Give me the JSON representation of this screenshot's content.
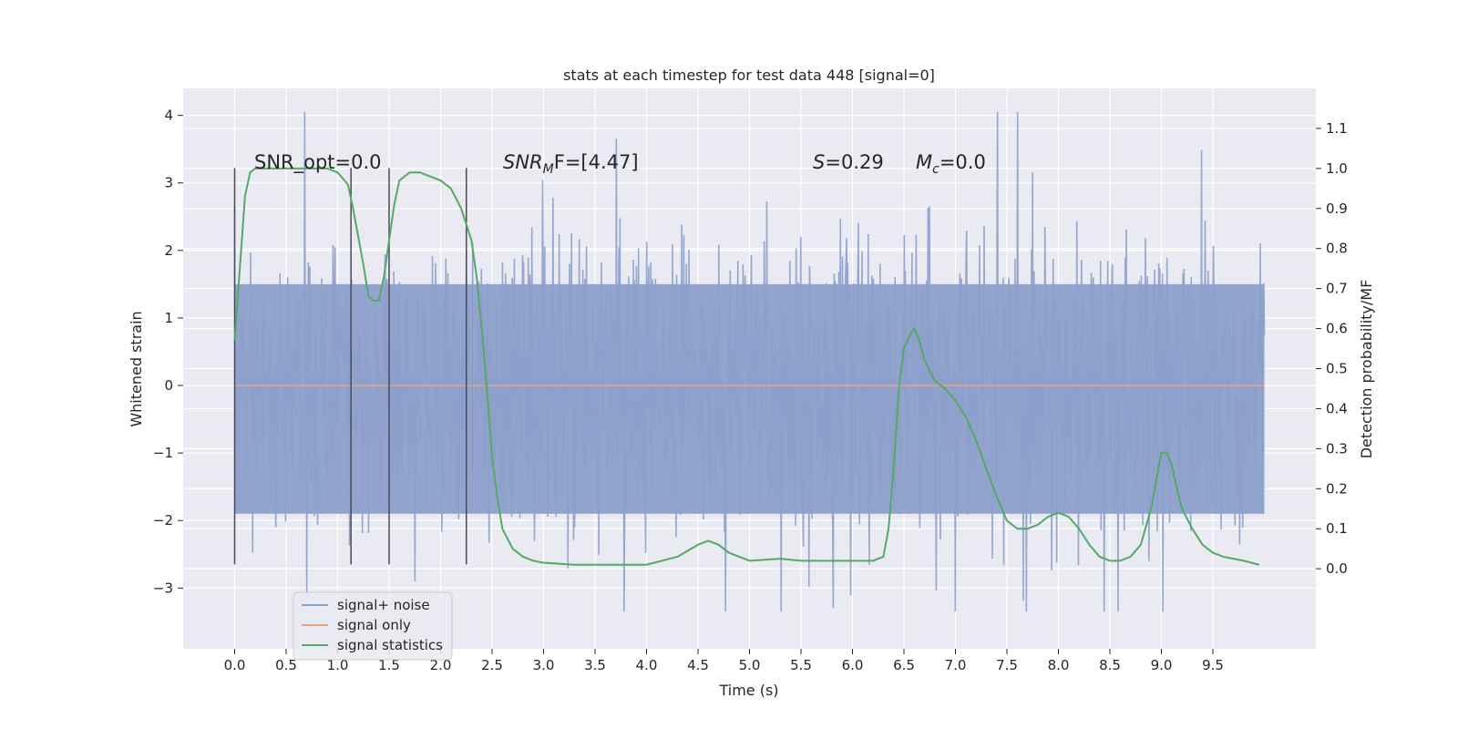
{
  "chart_data": {
    "type": "line",
    "title": "stats at each timestep for test data 448 [signal=0]",
    "xlabel": "Time (s)",
    "ylabel_left": "Whitened strain",
    "ylabel_right": "Detection probability/MF",
    "xlim": [
      -0.5,
      10.5
    ],
    "ylim_left": [
      -3.9,
      4.4
    ],
    "ylim_right": [
      -0.2,
      1.2
    ],
    "x_ticks": [
      0.0,
      0.5,
      1.0,
      1.5,
      2.0,
      2.5,
      3.0,
      3.5,
      4.0,
      4.5,
      5.0,
      5.5,
      6.0,
      6.5,
      7.0,
      7.5,
      8.0,
      8.5,
      9.0,
      9.5
    ],
    "x_tick_labels": [
      "0.0",
      "0.5",
      "1.0",
      "1.5",
      "2.0",
      "2.5",
      "3.0",
      "3.5",
      "4.0",
      "4.5",
      "5.0",
      "5.5",
      "6.0",
      "6.5",
      "7.0",
      "7.5",
      "8.0",
      "8.5",
      "9.0",
      "9.5"
    ],
    "y_ticks_left": [
      4,
      3,
      2,
      1,
      0,
      -1,
      -2,
      -3
    ],
    "y_tick_labels_left": [
      "4",
      "3",
      "2",
      "1",
      "0",
      "−1",
      "−2",
      "−3"
    ],
    "y_ticks_right": [
      1.1,
      1.0,
      0.9,
      0.8,
      0.7,
      0.6,
      0.5,
      0.4,
      0.3,
      0.2,
      0.1,
      0.0
    ],
    "y_tick_labels_right": [
      "1.1",
      "1.0",
      "0.9",
      "0.8",
      "0.7",
      "0.6",
      "0.5",
      "0.4",
      "0.3",
      "0.2",
      "0.1",
      "0.0"
    ],
    "grid": true,
    "legend_position": "bottom-left",
    "annotations": {
      "snr_opt": "SNR_opt=0.0",
      "snr_mf_label": "SNR",
      "snr_mf_sub": "M",
      "snr_mf_rest": "F=[4.47]",
      "s_label": "S",
      "s_value": "=0.29",
      "mc_label": "M",
      "mc_sub": "c",
      "mc_value": "=0.0"
    },
    "vertical_markers_x": [
      0.0,
      1.13,
      1.5,
      2.25
    ],
    "series": [
      {
        "name": "signal+ noise",
        "axis": "left",
        "color": "#8da0cb",
        "t_range": [
          0.0,
          10.0
        ],
        "core_band": [
          -1.9,
          1.5
        ],
        "sample_count": 2000,
        "typical_peaks": [
          4.0,
          -3.3
        ]
      },
      {
        "name": "signal only",
        "axis": "left",
        "color": "#e5a48d",
        "x": [
          0.0,
          10.0
        ],
        "y": [
          0.0,
          0.0
        ]
      },
      {
        "name": "signal statistics",
        "axis": "right",
        "color": "#55a868",
        "x": [
          0.0,
          0.05,
          0.1,
          0.15,
          0.2,
          0.3,
          0.5,
          0.7,
          0.9,
          1.0,
          1.1,
          1.15,
          1.2,
          1.25,
          1.3,
          1.35,
          1.4,
          1.45,
          1.5,
          1.55,
          1.6,
          1.7,
          1.8,
          1.9,
          2.0,
          2.1,
          2.2,
          2.3,
          2.35,
          2.4,
          2.45,
          2.5,
          2.55,
          2.6,
          2.7,
          2.8,
          2.9,
          3.0,
          3.3,
          3.6,
          4.0,
          4.3,
          4.5,
          4.6,
          4.7,
          4.8,
          5.0,
          5.3,
          5.5,
          5.8,
          6.0,
          6.2,
          6.3,
          6.35,
          6.4,
          6.45,
          6.5,
          6.55,
          6.6,
          6.65,
          6.7,
          6.8,
          6.9,
          7.0,
          7.1,
          7.2,
          7.3,
          7.4,
          7.5,
          7.6,
          7.7,
          7.8,
          7.9,
          8.0,
          8.1,
          8.2,
          8.3,
          8.4,
          8.5,
          8.6,
          8.7,
          8.8,
          8.9,
          8.95,
          9.0,
          9.05,
          9.1,
          9.15,
          9.2,
          9.3,
          9.4,
          9.5,
          9.6,
          9.8,
          9.95
        ],
        "y": [
          0.57,
          0.75,
          0.93,
          0.99,
          1.0,
          1.0,
          1.0,
          1.0,
          1.0,
          0.99,
          0.96,
          0.9,
          0.83,
          0.76,
          0.68,
          0.67,
          0.67,
          0.73,
          0.82,
          0.91,
          0.97,
          0.99,
          0.99,
          0.98,
          0.97,
          0.95,
          0.9,
          0.82,
          0.73,
          0.6,
          0.45,
          0.28,
          0.18,
          0.1,
          0.05,
          0.03,
          0.02,
          0.015,
          0.01,
          0.01,
          0.01,
          0.03,
          0.06,
          0.07,
          0.06,
          0.04,
          0.02,
          0.025,
          0.02,
          0.02,
          0.02,
          0.02,
          0.03,
          0.1,
          0.25,
          0.45,
          0.55,
          0.58,
          0.6,
          0.57,
          0.52,
          0.47,
          0.45,
          0.42,
          0.38,
          0.32,
          0.25,
          0.18,
          0.12,
          0.1,
          0.1,
          0.11,
          0.13,
          0.14,
          0.13,
          0.1,
          0.06,
          0.03,
          0.02,
          0.02,
          0.03,
          0.06,
          0.15,
          0.22,
          0.29,
          0.29,
          0.26,
          0.2,
          0.15,
          0.1,
          0.06,
          0.04,
          0.03,
          0.02,
          0.01
        ]
      }
    ]
  }
}
